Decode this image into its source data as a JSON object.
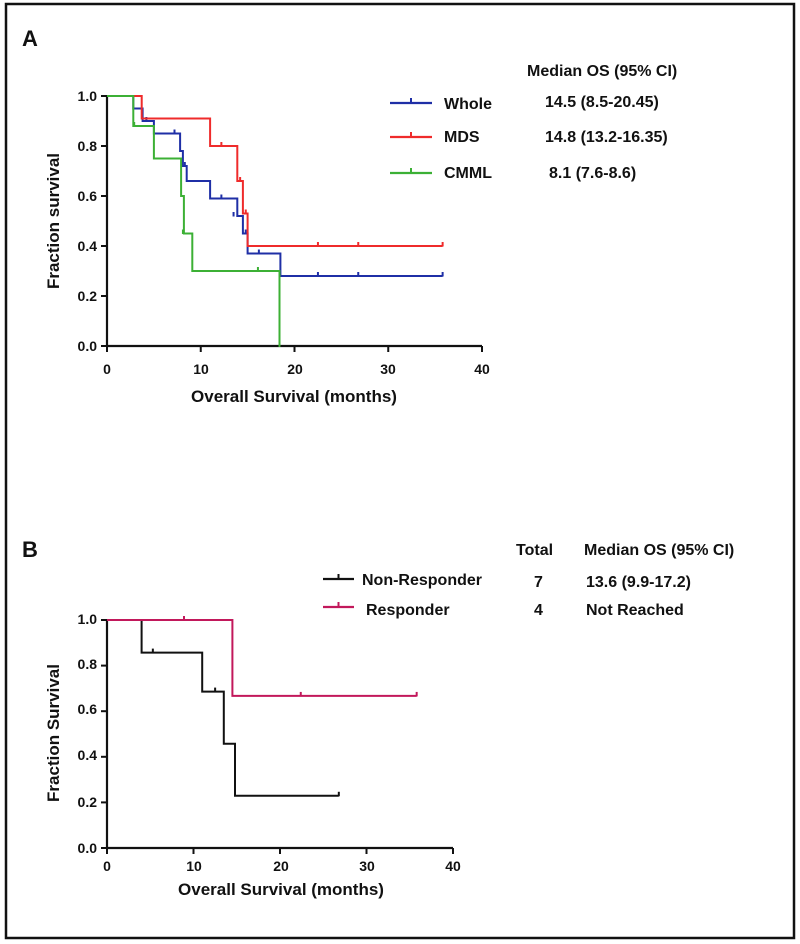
{
  "colors": {
    "frame": "#111111",
    "whole": "#1f2fa6",
    "mds": "#ef2b2b",
    "cmml": "#3cb035",
    "non_responder": "#111111",
    "responder": "#c2185b"
  },
  "chart_data": [
    {
      "type": "line",
      "step": true,
      "panel_label": "A",
      "xlabel": "Overall Survival (months)",
      "ylabel": "Fraction survival",
      "xlim": [
        0,
        40
      ],
      "ylim": [
        0,
        1
      ],
      "xticks": [
        "0",
        "10",
        "20",
        "30",
        "40"
      ],
      "yticks": [
        "0.0",
        "0.2",
        "0.4",
        "0.6",
        "0.8",
        "1.0"
      ],
      "grid": false,
      "legend_position": "top-right",
      "table_header": {
        "median": "Median OS (95% CI)"
      },
      "series": [
        {
          "name": "Whole",
          "color_key": "whole",
          "median": "14.5 (8.5-20.45)",
          "x": [
            0,
            2.8,
            3.8,
            5.0,
            7.8,
            8.1,
            8.5,
            9.4,
            11.0,
            13.9,
            14.5,
            15.0,
            18.5,
            35.8
          ],
          "y": [
            1.0,
            0.95,
            0.9,
            0.85,
            0.78,
            0.72,
            0.66,
            0.66,
            0.59,
            0.52,
            0.45,
            0.37,
            0.28,
            0.28
          ],
          "censored": [
            [
              4.2,
              0.9
            ],
            [
              7.2,
              0.85
            ],
            [
              8.3,
              0.72
            ],
            [
              12.2,
              0.59
            ],
            [
              13.5,
              0.52
            ],
            [
              14.8,
              0.45
            ],
            [
              16.2,
              0.37
            ],
            [
              22.5,
              0.28
            ],
            [
              26.8,
              0.28
            ],
            [
              35.8,
              0.28
            ]
          ]
        },
        {
          "name": "MDS",
          "color_key": "mds",
          "median": "14.8 (13.2-16.35)",
          "x": [
            0,
            3.7,
            11.0,
            13.9,
            14.5,
            15.0,
            35.8
          ],
          "y": [
            1.0,
            0.91,
            0.8,
            0.66,
            0.53,
            0.4,
            0.4
          ],
          "censored": [
            [
              12.2,
              0.8
            ],
            [
              14.2,
              0.66
            ],
            [
              14.8,
              0.53
            ],
            [
              22.5,
              0.4
            ],
            [
              26.8,
              0.4
            ],
            [
              35.8,
              0.4
            ]
          ]
        },
        {
          "name": "CMML",
          "color_key": "cmml",
          "median": "8.1 (7.6-8.6)",
          "x": [
            0,
            2.8,
            5.0,
            7.9,
            8.2,
            9.1,
            18.4,
            18.5
          ],
          "y": [
            1.0,
            0.88,
            0.75,
            0.6,
            0.45,
            0.3,
            0.0,
            0.0
          ],
          "censored": [
            [
              2.9,
              0.88
            ],
            [
              8.1,
              0.45
            ],
            [
              16.1,
              0.3
            ]
          ]
        }
      ]
    },
    {
      "type": "line",
      "step": true,
      "panel_label": "B",
      "xlabel": "Overall Survival (months)",
      "ylabel": "Fraction Survival",
      "xlim": [
        0,
        40
      ],
      "ylim": [
        0,
        1
      ],
      "xticks": [
        "0",
        "10",
        "20",
        "30",
        "40"
      ],
      "yticks": [
        "0.0",
        "0.2",
        "0.4",
        "0.6",
        "0.8",
        "1.0"
      ],
      "grid": false,
      "legend_position": "top-right",
      "table_header": {
        "total": "Total",
        "median": "Median OS (95% CI)"
      },
      "series": [
        {
          "name": "Non-Responder",
          "color_key": "non_responder",
          "total": "7",
          "median": "13.6 (9.9-17.2)",
          "x": [
            0,
            4.0,
            11.0,
            13.5,
            14.8,
            26.8
          ],
          "y": [
            1.0,
            0.857,
            0.686,
            0.457,
            0.229,
            0.229
          ],
          "censored": [
            [
              5.3,
              0.857
            ],
            [
              12.5,
              0.686
            ],
            [
              26.8,
              0.229
            ]
          ]
        },
        {
          "name": "Responder",
          "color_key": "responder",
          "total": "4",
          "median": "Not Reached",
          "x": [
            0,
            14.5,
            35.8
          ],
          "y": [
            1.0,
            0.667,
            0.667
          ],
          "censored": [
            [
              8.9,
              1.0
            ],
            [
              22.4,
              0.667
            ],
            [
              35.8,
              0.667
            ]
          ]
        }
      ]
    }
  ]
}
